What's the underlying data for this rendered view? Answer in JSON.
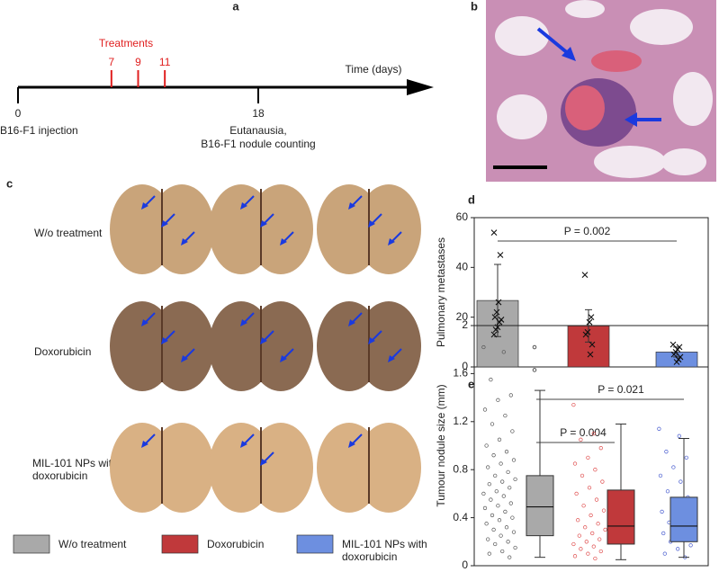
{
  "panel_a": {
    "label": "a",
    "treatments_label": "Treatments",
    "treatment_days": [
      7,
      9,
      11
    ],
    "ticks": [
      0,
      18
    ],
    "axis_label": "Time (days)",
    "start_event": "B16-F1 injection",
    "end_event": [
      "Eutanausia,",
      "B16-F1 nodule counting"
    ]
  },
  "panel_b": {
    "label": "b"
  },
  "panel_c": {
    "label": "c",
    "row_labels": [
      "W/o treatment",
      "Doxorubicin",
      "MIL-101 NPs with doxorubicin"
    ]
  },
  "chart_data": [
    {
      "type": "bar",
      "label": "d",
      "ylabel": "Pulmonary metastases",
      "ylim": [
        0,
        60
      ],
      "yticks": [
        0,
        20,
        40,
        60
      ],
      "annotation": "P = 0.002",
      "series": [
        {
          "name": "W/o treatment",
          "color": "#a9a9a9",
          "values": [
            26.7
          ],
          "errors": [
            14.5
          ],
          "points": [
            54,
            45,
            26,
            22,
            20,
            19,
            18,
            16,
            15,
            13
          ]
        },
        {
          "name": "Doxorubicin",
          "color": "#c0393b",
          "values": [
            16.5
          ],
          "errors": [
            6.5
          ],
          "points": [
            37,
            20,
            18,
            14,
            13,
            9,
            5
          ]
        },
        {
          "name": "MIL-101 NPs with doxorubicin",
          "color": "#6d8fe0",
          "values": [
            6
          ],
          "errors": [
            2
          ],
          "points": [
            9,
            8,
            7,
            6,
            5,
            4,
            3,
            2
          ]
        }
      ]
    },
    {
      "type": "box",
      "label": "e",
      "ylabel": "Tumour nodule size (mm)",
      "ylim": [
        0,
        2
      ],
      "yticks": [
        0,
        0.4,
        0.8,
        1.2,
        1.6,
        2
      ],
      "annotations": [
        "P = 0.004",
        "P = 0.021"
      ],
      "series": [
        {
          "color": "#a9a9a9",
          "point_color": "#555555",
          "min": 0.07,
          "q1": 0.25,
          "median": 0.49,
          "q3": 0.75,
          "max": 1.46,
          "outliers": [
            1.63,
            1.82
          ],
          "points": [
            1.82,
            1.78,
            1.55,
            1.42,
            1.38,
            1.3,
            1.25,
            1.18,
            1.12,
            1.05,
            1.0,
            0.95,
            0.92,
            0.88,
            0.85,
            0.82,
            0.78,
            0.75,
            0.72,
            0.7,
            0.68,
            0.65,
            0.62,
            0.6,
            0.58,
            0.55,
            0.52,
            0.5,
            0.48,
            0.45,
            0.42,
            0.4,
            0.38,
            0.35,
            0.32,
            0.3,
            0.28,
            0.25,
            0.22,
            0.2,
            0.18,
            0.15,
            0.12,
            0.1,
            0.07
          ]
        },
        {
          "color": "#c0393b",
          "point_color": "#e05050",
          "min": 0.05,
          "q1": 0.18,
          "median": 0.33,
          "q3": 0.63,
          "max": 1.18,
          "outliers": [],
          "points": [
            1.34,
            1.1,
            1.05,
            0.98,
            0.9,
            0.85,
            0.8,
            0.75,
            0.7,
            0.65,
            0.6,
            0.55,
            0.5,
            0.46,
            0.42,
            0.38,
            0.35,
            0.32,
            0.3,
            0.27,
            0.25,
            0.22,
            0.2,
            0.18,
            0.16,
            0.14,
            0.12,
            0.1,
            0.08,
            0.06
          ]
        },
        {
          "color": "#6d8fe0",
          "point_color": "#4b5fd0",
          "min": 0.07,
          "q1": 0.2,
          "median": 0.33,
          "q3": 0.57,
          "max": 1.06,
          "outliers": [],
          "points": [
            1.14,
            1.08,
            0.95,
            0.9,
            0.82,
            0.75,
            0.7,
            0.62,
            0.57,
            0.5,
            0.45,
            0.4,
            0.36,
            0.33,
            0.3,
            0.27,
            0.24,
            0.2,
            0.17,
            0.14,
            0.1,
            0.07
          ]
        }
      ]
    }
  ]
}
